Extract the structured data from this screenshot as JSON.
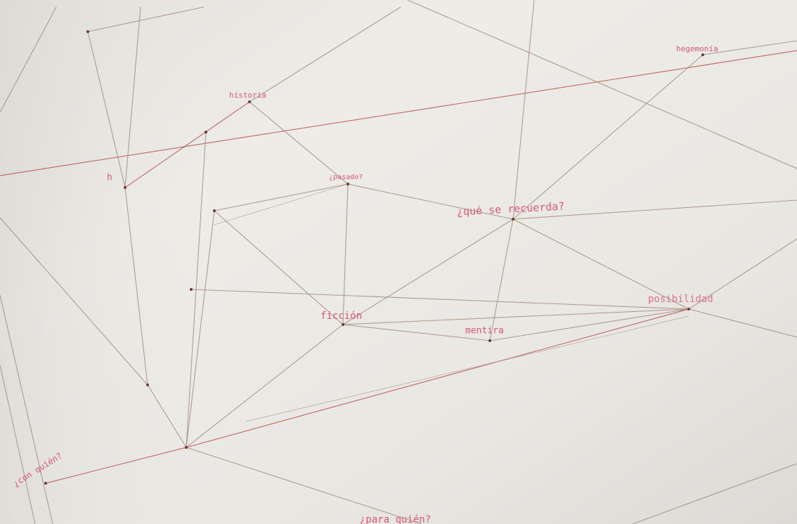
{
  "nodes": [
    {
      "label": "hegemonía"
    },
    {
      "label": "historia"
    },
    {
      "label": "¿pasado?"
    },
    {
      "label": "¿qué se recuerda?"
    },
    {
      "label": "ficción"
    },
    {
      "label": "mentira"
    },
    {
      "label": "posibilidad"
    },
    {
      "label": "¿para quién?"
    },
    {
      "label": "¿con quién?"
    },
    {
      "label": "h"
    }
  ]
}
